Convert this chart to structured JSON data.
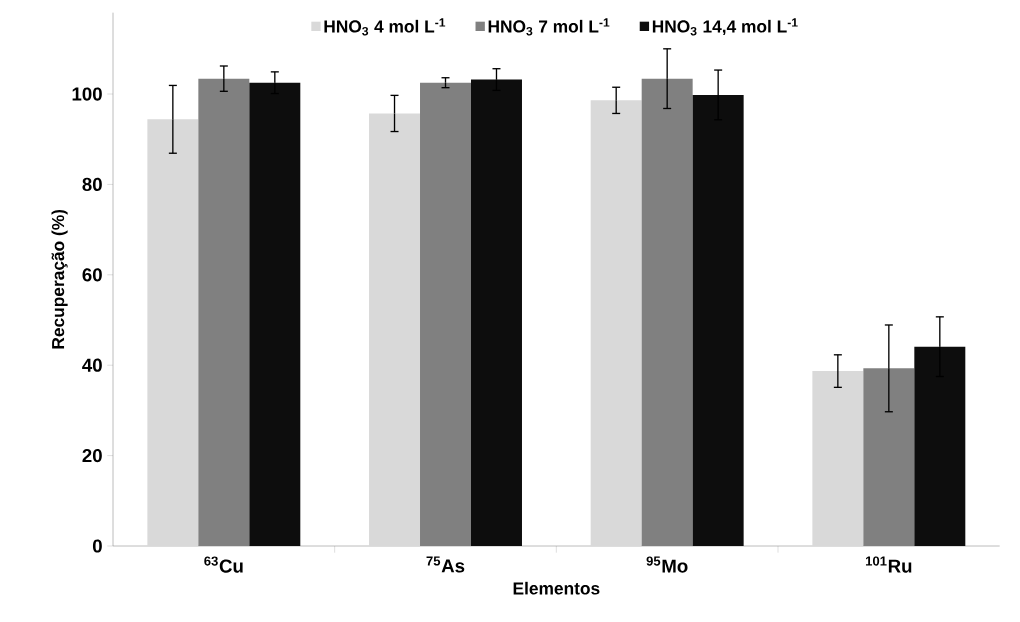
{
  "chart_data": {
    "type": "bar",
    "xlabel": "Elementos",
    "ylabel": "Recuperação (%)",
    "categories": [
      "$^{63}$Cu",
      "$^{75}$As",
      "$^{95}$Mo",
      "$^{101}$Ru"
    ],
    "series": [
      {
        "name": "HNO$_{3}$ 4 mol L$^{-1}$",
        "color": "#d9d9d9",
        "values": [
          94.4,
          95.7,
          98.6,
          38.7
        ],
        "errors": [
          7.5,
          4.0,
          2.9,
          3.6
        ]
      },
      {
        "name": "HNO$_{3}$ 7 mol L$^{-1}$",
        "color": "#808080",
        "values": [
          103.4,
          102.5,
          103.4,
          39.3
        ],
        "errors": [
          2.8,
          1.1,
          6.6,
          9.6
        ]
      },
      {
        "name": "HNO$_{3}$ 14,4 mol L$^{-1}$",
        "color": "#0d0d0d",
        "values": [
          102.5,
          103.2,
          99.8,
          44.1
        ],
        "errors": [
          2.4,
          2.4,
          5.5,
          6.6
        ]
      }
    ],
    "ylim": [
      0,
      118
    ],
    "yticks": [
      0,
      20,
      40,
      60,
      80,
      100
    ],
    "grid": false,
    "legend": "top"
  }
}
